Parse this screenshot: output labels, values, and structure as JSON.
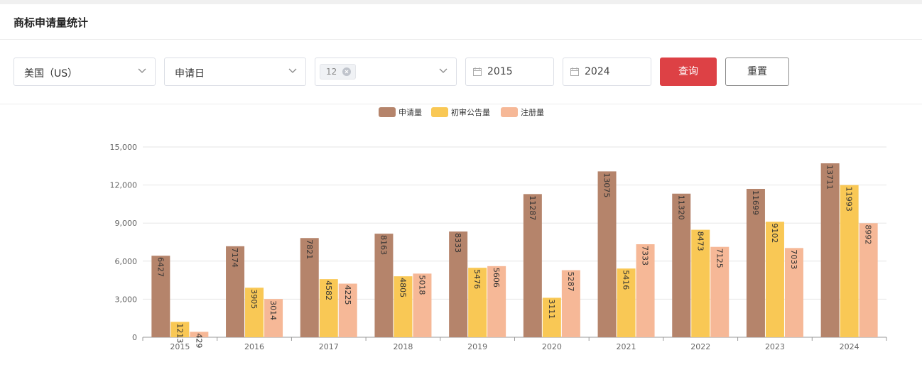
{
  "page": {
    "title": "商标申请量统计"
  },
  "filters": {
    "country": "美国（US）",
    "date_type": "申请日",
    "class_tag": "12",
    "start_year": "2015",
    "end_year": "2024",
    "query_label": "查询",
    "reset_label": "重置"
  },
  "colors": {
    "query_button": "#dd4145"
  },
  "chart_data": {
    "type": "bar",
    "title": "",
    "xlabel": "",
    "ylabel": "",
    "categories": [
      "2015",
      "2016",
      "2017",
      "2018",
      "2019",
      "2020",
      "2021",
      "2022",
      "2023",
      "2024"
    ],
    "ylim": [
      0,
      15000
    ],
    "yticks": [
      0,
      3000,
      6000,
      9000,
      12000,
      15000
    ],
    "ytick_labels": [
      "0",
      "3,000",
      "6,000",
      "9,000",
      "12,000",
      "15,000"
    ],
    "legend_position": "top-center",
    "grid": true,
    "series": [
      {
        "name": "申请量",
        "color": "#b5846b",
        "values": [
          6427,
          7174,
          7821,
          8163,
          8333,
          11287,
          13075,
          11320,
          11699,
          13711
        ]
      },
      {
        "name": "初审公告量",
        "color": "#f9c855",
        "values": [
          1213,
          3905,
          4582,
          4805,
          5476,
          3111,
          5416,
          8473,
          9102,
          11993
        ]
      },
      {
        "name": "注册量",
        "color": "#f6b897",
        "values": [
          429,
          3014,
          4225,
          5018,
          5606,
          5287,
          7333,
          7125,
          7033,
          8992
        ]
      }
    ]
  }
}
